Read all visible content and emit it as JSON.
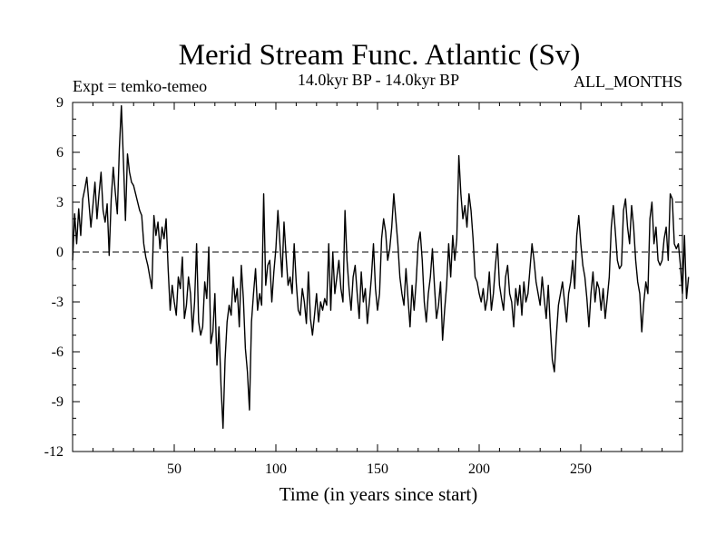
{
  "chart_data": {
    "type": "line",
    "title": "Merid Stream Func. Atlantic (Sv)",
    "subtitle_left": "Expt = temko-temeo",
    "subtitle_center": "14.0kyr BP - 14.0kyr BP",
    "subtitle_right": "ALL_MONTHS",
    "xlabel": "Time (in years since start)",
    "ylabel": "",
    "xlim": [
      0,
      300
    ],
    "ylim": [
      -12,
      9
    ],
    "x_ticks": [
      50,
      100,
      150,
      200,
      250
    ],
    "y_ticks": [
      -12,
      -9,
      -6,
      -3,
      0,
      3,
      6,
      9
    ],
    "zero_line": "dashed",
    "grid": false,
    "colors": {
      "line": "#000000",
      "background": "#ffffff"
    },
    "series": [
      {
        "name": "Merid Stream Func. Atlantic",
        "x_start": 0,
        "x_step": 1,
        "values": [
          -0.5,
          2.3,
          0.5,
          2.6,
          1.0,
          3.2,
          3.8,
          4.5,
          3.0,
          1.5,
          2.8,
          4.2,
          2.0,
          3.5,
          4.8,
          2.5,
          1.8,
          2.9,
          -0.2,
          3.2,
          5.1,
          3.6,
          2.3,
          6.2,
          8.8,
          5.5,
          1.9,
          5.9,
          4.8,
          4.2,
          4.0,
          3.5,
          3.0,
          2.5,
          2.2,
          0.5,
          -0.3,
          -0.8,
          -1.5,
          -2.2,
          2.2,
          1.0,
          1.8,
          0.2,
          1.5,
          0.8,
          2.0,
          -1.0,
          -3.5,
          -2.0,
          -3.0,
          -3.8,
          -1.5,
          -2.2,
          -0.3,
          -4.0,
          -3.2,
          -1.5,
          -2.5,
          -4.8,
          -3.0,
          0.5,
          -4.2,
          -5.0,
          -4.5,
          -1.8,
          -2.8,
          0.3,
          -5.5,
          -4.8,
          -2.5,
          -6.8,
          -4.5,
          -8.0,
          -10.6,
          -6.5,
          -4.2,
          -3.2,
          -3.8,
          -1.5,
          -3.0,
          -2.2,
          -4.5,
          -0.8,
          -2.8,
          -5.8,
          -7.2,
          -9.5,
          -4.2,
          -2.5,
          -1.0,
          -3.5,
          -2.5,
          -3.2,
          3.5,
          -2.0,
          -0.8,
          -0.5,
          -3.0,
          -1.2,
          0.2,
          2.5,
          0.5,
          -1.5,
          1.8,
          -0.2,
          -2.0,
          -1.5,
          -2.5,
          0.5,
          -1.8,
          -3.5,
          -3.8,
          -2.2,
          -3.0,
          -4.3,
          -1.2,
          -4.0,
          -5.0,
          -3.8,
          -2.5,
          -4.2,
          -3.0,
          -3.5,
          -2.8,
          -3.2,
          0.5,
          -3.5,
          0.0,
          -2.5,
          -1.5,
          -0.5,
          -2.2,
          -3.0,
          2.5,
          -0.5,
          -2.2,
          -3.5,
          -1.5,
          -0.8,
          -2.5,
          -4.0,
          -1.2,
          -3.0,
          -2.2,
          -4.3,
          -3.0,
          -1.5,
          0.5,
          -2.2,
          -3.5,
          -2.5,
          0.8,
          2.0,
          1.2,
          -0.5,
          0.2,
          1.5,
          3.5,
          2.0,
          0.5,
          -1.5,
          -2.5,
          -3.2,
          -1.0,
          -2.8,
          -4.5,
          -2.0,
          -3.5,
          -1.8,
          0.5,
          1.2,
          -0.5,
          -3.0,
          -4.2,
          -2.5,
          -1.5,
          0.2,
          -2.0,
          -4.0,
          -3.2,
          -1.8,
          -5.3,
          -3.5,
          -2.0,
          0.5,
          -1.5,
          1.0,
          -0.5,
          0.8,
          5.8,
          3.5,
          2.0,
          2.8,
          1.5,
          3.5,
          2.5,
          0.8,
          -1.5,
          -1.8,
          -2.5,
          -3.0,
          -2.2,
          -3.5,
          -2.8,
          -1.2,
          -3.5,
          -2.5,
          -0.8,
          0.5,
          -2.0,
          -2.8,
          -3.5,
          -1.5,
          -0.8,
          -2.5,
          -3.0,
          -4.5,
          -2.2,
          -3.2,
          -2.0,
          -3.8,
          -1.8,
          -3.0,
          -2.5,
          -1.0,
          0.5,
          -0.5,
          -1.8,
          -2.5,
          -3.2,
          -1.5,
          -2.8,
          -4.0,
          -2.0,
          -4.5,
          -6.5,
          -7.2,
          -5.0,
          -3.2,
          -2.5,
          -1.8,
          -3.0,
          -4.2,
          -2.5,
          -1.8,
          -0.5,
          -2.2,
          1.0,
          2.2,
          0.5,
          -0.8,
          -1.5,
          -2.8,
          -4.5,
          -2.5,
          -1.2,
          -3.0,
          -1.8,
          -2.2,
          -3.5,
          -2.2,
          -4.0,
          -2.8,
          -1.5,
          1.5,
          2.8,
          1.2,
          -0.5,
          -1.0,
          -0.8,
          2.5,
          3.2,
          1.5,
          0.5,
          2.8,
          1.5,
          -0.5,
          -1.8,
          -2.5,
          -4.8,
          -3.0,
          -1.8,
          -2.5,
          2.0,
          3.0,
          0.5,
          1.5,
          -0.5,
          -0.8,
          -0.5,
          0.8,
          1.5,
          -0.5,
          3.5,
          3.2,
          0.5,
          0.2,
          0.5,
          -0.8,
          -2.5,
          1.0,
          -2.8,
          -1.5
        ]
      }
    ]
  }
}
